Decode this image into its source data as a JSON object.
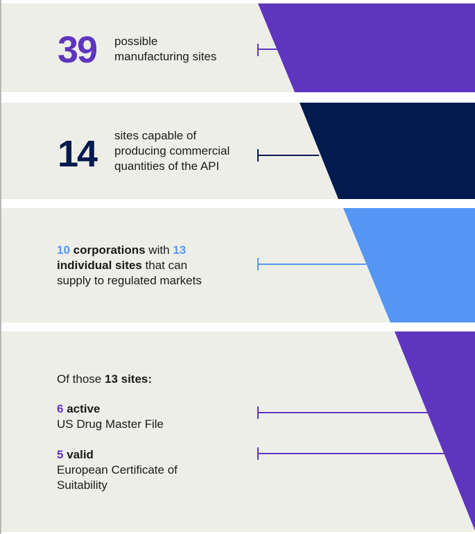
{
  "colors": {
    "purple": "#5e35be",
    "navy": "#021a4e",
    "blue": "#5596f4",
    "panel_bg": "#eeeee9"
  },
  "panels": [
    {
      "number": "39",
      "lines": [
        "possible",
        "manufacturing sites"
      ]
    },
    {
      "number": "14",
      "lines": [
        "sites capable of",
        "producing commercial",
        "quantities of the API"
      ]
    },
    {
      "num1": "10",
      "text1": "corporations",
      "text2": "with",
      "num2": "13",
      "text3": "individual sites",
      "text4": "that can",
      "line3": "supply to regulated markets"
    },
    {
      "intro_pre": "Of those",
      "intro_bold": "13 sites:",
      "items": [
        {
          "number": "6",
          "label": "active",
          "lines": [
            "US Drug Master File"
          ]
        },
        {
          "number": "5",
          "label": "valid",
          "lines": [
            "European Certificate of",
            "Suitability"
          ]
        }
      ]
    }
  ]
}
